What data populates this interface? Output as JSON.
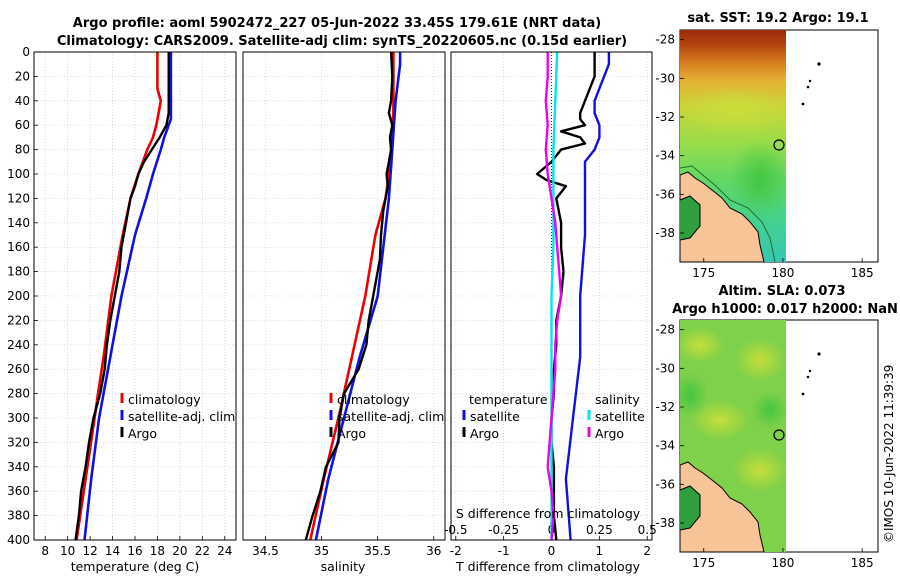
{
  "header": {
    "title_line1": "Argo profile: aoml 5902472_227 05-Jun-2022 33.45S 179.61E (NRT data)",
    "title_line2": "Climatology: CARS2009. Satellite-adj clim: synTS_20220605.nc (0.15d earlier)"
  },
  "colors": {
    "climatology": "#ee0000",
    "satellite": "#1111dd",
    "argo": "#000000",
    "sat_salinity": "#00e5ee",
    "argo_salinity": "#ee00ee",
    "land": "#f6c496",
    "coast": "#1f9e2f"
  },
  "chart_data": [
    {
      "type": "line",
      "name": "temperature-profile",
      "xlabel": "temperature (deg C)",
      "ylabel": "",
      "xlim": [
        7,
        25
      ],
      "ylim": [
        400,
        0
      ],
      "xticks": [
        "8",
        "10",
        "12",
        "14",
        "16",
        "18",
        "20",
        "22",
        "24"
      ],
      "yticks": [
        "0",
        "20",
        "40",
        "60",
        "80",
        "100",
        "120",
        "140",
        "160",
        "180",
        "200",
        "220",
        "240",
        "260",
        "280",
        "300",
        "320",
        "340",
        "360",
        "380",
        "400"
      ],
      "legend": [
        "climatology",
        "satellite-adj. clim",
        "Argo"
      ],
      "series": [
        {
          "name": "climatology",
          "points": [
            [
              0,
              18.0
            ],
            [
              10,
              18.0
            ],
            [
              30,
              18.0
            ],
            [
              40,
              18.3
            ],
            [
              50,
              18.1
            ],
            [
              60,
              17.9
            ],
            [
              70,
              17.6
            ],
            [
              80,
              17.1
            ],
            [
              100,
              16.3
            ],
            [
              120,
              15.6
            ],
            [
              150,
              14.9
            ],
            [
              200,
              13.9
            ],
            [
              250,
              13.2
            ],
            [
              280,
              12.7
            ],
            [
              300,
              12.4
            ],
            [
              350,
              11.6
            ],
            [
              400,
              10.8
            ]
          ]
        },
        {
          "name": "satellite-adj. clim",
          "points": [
            [
              0,
              19.2
            ],
            [
              20,
              19.2
            ],
            [
              40,
              19.2
            ],
            [
              55,
              19.2
            ],
            [
              60,
              19.0
            ],
            [
              70,
              18.6
            ],
            [
              80,
              18.3
            ],
            [
              100,
              17.6
            ],
            [
              120,
              17.0
            ],
            [
              150,
              16.0
            ],
            [
              200,
              14.8
            ],
            [
              250,
              13.8
            ],
            [
              300,
              12.8
            ],
            [
              350,
              12.1
            ],
            [
              400,
              11.5
            ]
          ]
        },
        {
          "name": "Argo",
          "points": [
            [
              0,
              19.0
            ],
            [
              20,
              19.0
            ],
            [
              50,
              19.0
            ],
            [
              60,
              18.8
            ],
            [
              70,
              18.2
            ],
            [
              80,
              17.5
            ],
            [
              90,
              16.8
            ],
            [
              100,
              16.3
            ],
            [
              110,
              16.0
            ],
            [
              120,
              15.6
            ],
            [
              140,
              15.2
            ],
            [
              160,
              14.8
            ],
            [
              180,
              14.6
            ],
            [
              200,
              14.2
            ],
            [
              220,
              13.8
            ],
            [
              240,
              13.5
            ],
            [
              260,
              13.3
            ],
            [
              280,
              12.9
            ],
            [
              300,
              12.3
            ],
            [
              320,
              11.9
            ],
            [
              340,
              11.6
            ],
            [
              360,
              11.2
            ],
            [
              380,
              11.0
            ],
            [
              400,
              10.7
            ]
          ]
        }
      ]
    },
    {
      "type": "line",
      "name": "salinity-profile",
      "xlabel": "salinity",
      "xlim": [
        34.3,
        36.1
      ],
      "ylim": [
        400,
        0
      ],
      "xticks": [
        "34.5",
        "35",
        "35.5",
        "36"
      ],
      "legend": [
        "climatology",
        "satellite-adj. clim",
        "Argo"
      ],
      "series": [
        {
          "name": "climatology",
          "points": [
            [
              0,
              35.64
            ],
            [
              50,
              35.64
            ],
            [
              80,
              35.62
            ],
            [
              100,
              35.6
            ],
            [
              120,
              35.57
            ],
            [
              150,
              35.48
            ],
            [
              200,
              35.39
            ],
            [
              250,
              35.27
            ],
            [
              300,
              35.15
            ],
            [
              350,
              35.02
            ],
            [
              400,
              34.9
            ]
          ]
        },
        {
          "name": "satellite-adj. clim",
          "points": [
            [
              0,
              35.7
            ],
            [
              10,
              35.7
            ],
            [
              40,
              35.66
            ],
            [
              80,
              35.63
            ],
            [
              120,
              35.6
            ],
            [
              160,
              35.55
            ],
            [
              200,
              35.5
            ],
            [
              250,
              35.34
            ],
            [
              300,
              35.2
            ],
            [
              350,
              35.06
            ],
            [
              400,
              34.95
            ]
          ]
        },
        {
          "name": "Argo",
          "points": [
            [
              0,
              35.62
            ],
            [
              20,
              35.63
            ],
            [
              40,
              35.62
            ],
            [
              50,
              35.6
            ],
            [
              60,
              35.63
            ],
            [
              70,
              35.61
            ],
            [
              80,
              35.62
            ],
            [
              90,
              35.6
            ],
            [
              100,
              35.58
            ],
            [
              110,
              35.59
            ],
            [
              130,
              35.55
            ],
            [
              150,
              35.53
            ],
            [
              170,
              35.52
            ],
            [
              200,
              35.46
            ],
            [
              220,
              35.42
            ],
            [
              240,
              35.4
            ],
            [
              260,
              35.33
            ],
            [
              280,
              35.2
            ],
            [
              300,
              35.16
            ],
            [
              320,
              35.15
            ],
            [
              340,
              35.04
            ],
            [
              360,
              34.99
            ],
            [
              380,
              34.92
            ],
            [
              400,
              34.86
            ]
          ]
        }
      ]
    },
    {
      "type": "line",
      "name": "difference-profile",
      "xlabel": "T difference from climatology",
      "xlabel_top": "S difference from climatology",
      "xlim": [
        -2.1,
        2.1
      ],
      "ylim": [
        400,
        0
      ],
      "xticks": [
        "-2",
        "-1",
        "0",
        "1",
        "2"
      ],
      "xticks_top": [
        "-0.5",
        "-0.25",
        "0",
        "0.25",
        "0.5"
      ],
      "legend_temperature_title": "temperature",
      "legend_salinity_title": "salinity",
      "legend": [
        "satellite",
        "Argo",
        "satellite",
        "Argo"
      ],
      "series": [
        {
          "name": "T satellite",
          "points": [
            [
              0,
              1.2
            ],
            [
              10,
              1.2
            ],
            [
              20,
              1.1
            ],
            [
              30,
              1.0
            ],
            [
              40,
              0.9
            ],
            [
              50,
              0.9
            ],
            [
              55,
              0.95
            ],
            [
              60,
              1.0
            ],
            [
              70,
              1.0
            ],
            [
              80,
              0.9
            ],
            [
              90,
              0.7
            ],
            [
              100,
              0.7
            ],
            [
              120,
              0.7
            ],
            [
              150,
              0.7
            ],
            [
              200,
              0.6
            ],
            [
              250,
              0.6
            ],
            [
              300,
              0.45
            ],
            [
              350,
              0.3
            ],
            [
              400,
              0.4
            ]
          ]
        },
        {
          "name": "T Argo",
          "points": [
            [
              0,
              0.9
            ],
            [
              10,
              0.9
            ],
            [
              20,
              0.9
            ],
            [
              30,
              0.8
            ],
            [
              40,
              0.7
            ],
            [
              50,
              0.6
            ],
            [
              55,
              0.6
            ],
            [
              60,
              0.7
            ],
            [
              65,
              0.2
            ],
            [
              70,
              0.6
            ],
            [
              75,
              0.7
            ],
            [
              80,
              0.2
            ],
            [
              90,
              0
            ],
            [
              100,
              -0.3
            ],
            [
              105,
              -0.1
            ],
            [
              110,
              0.3
            ],
            [
              120,
              0.1
            ],
            [
              140,
              0.2
            ],
            [
              160,
              0.2
            ],
            [
              180,
              0.25
            ],
            [
              200,
              0.2
            ],
            [
              220,
              0.1
            ],
            [
              240,
              0.1
            ],
            [
              260,
              0.05
            ],
            [
              280,
              0.05
            ],
            [
              300,
              0.0
            ],
            [
              320,
              0.0
            ],
            [
              340,
              0.05
            ],
            [
              360,
              0.05
            ],
            [
              380,
              0.05
            ],
            [
              400,
              0.1
            ]
          ]
        },
        {
          "name": "S satellite",
          "points": [
            [
              0,
              0.03
            ],
            [
              40,
              0.02
            ],
            [
              80,
              0.01
            ],
            [
              120,
              0.01
            ],
            [
              160,
              0.01
            ],
            [
              200,
              0.0
            ],
            [
              250,
              0.0
            ],
            [
              300,
              0.0
            ],
            [
              350,
              0.0
            ],
            [
              400,
              0.0
            ]
          ]
        },
        {
          "name": "S Argo",
          "points": [
            [
              0,
              -0.02
            ],
            [
              20,
              -0.02
            ],
            [
              40,
              -0.03
            ],
            [
              60,
              -0.02
            ],
            [
              80,
              -0.03
            ],
            [
              100,
              -0.02
            ],
            [
              120,
              0.0
            ],
            [
              140,
              0.02
            ],
            [
              160,
              0.03
            ],
            [
              180,
              0.04
            ],
            [
              200,
              0.05
            ],
            [
              220,
              0.03
            ],
            [
              240,
              0.02
            ],
            [
              260,
              0.02
            ],
            [
              280,
              0.01
            ],
            [
              300,
              0.0
            ],
            [
              320,
              -0.01
            ],
            [
              340,
              -0.02
            ],
            [
              360,
              0.0
            ],
            [
              380,
              0.01
            ],
            [
              400,
              0.0
            ]
          ]
        }
      ]
    },
    {
      "type": "heatmap",
      "name": "sst-map",
      "title": "sat. SST: 19.2 Argo: 19.1",
      "xlim": [
        173.5,
        186
      ],
      "ylim": [
        -39.5,
        -27.5
      ],
      "xticks": [
        "175",
        "180",
        "185"
      ],
      "yticks": [
        "-28",
        "-30",
        "-32",
        "-34",
        "-36",
        "-38"
      ],
      "argo_position": [
        179.61,
        -33.45
      ]
    },
    {
      "type": "heatmap",
      "name": "sla-map",
      "title_line1": "Altim. SLA: 0.073",
      "title_line2": "Argo h1000: 0.017 h2000: NaN",
      "xlim": [
        173.5,
        186
      ],
      "ylim": [
        -39.5,
        -27.5
      ],
      "xticks": [
        "175",
        "180",
        "185"
      ],
      "yticks": [
        "-28",
        "-30",
        "-32",
        "-34",
        "-36",
        "-38"
      ],
      "argo_position": [
        179.61,
        -33.45
      ]
    }
  ],
  "watermark": "©IMOS 10-Jun-2022 11:39:39"
}
